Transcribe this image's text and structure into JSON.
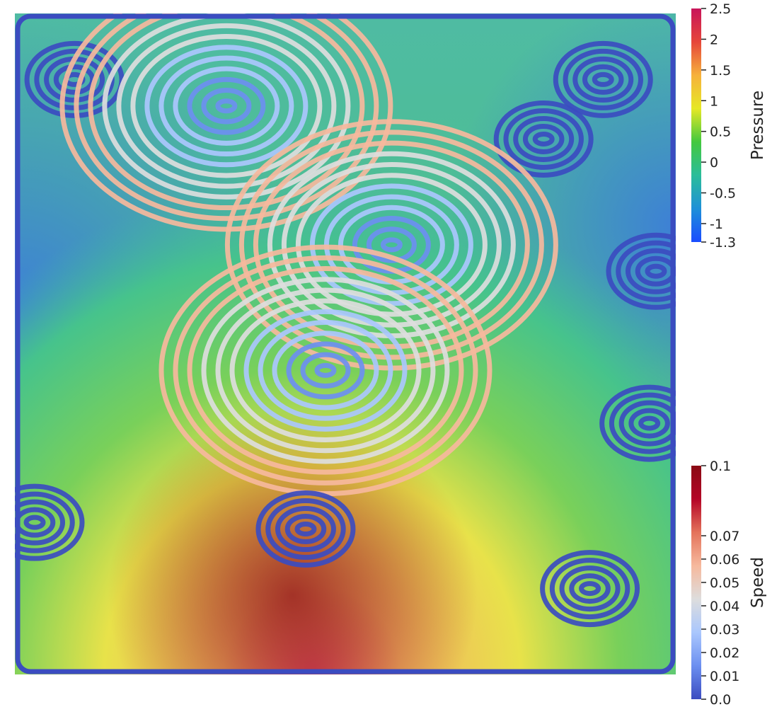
{
  "chart_data": [
    {
      "type": "heatmap",
      "description_free": true,
      "field": "Pressure",
      "colorbar": {
        "title": "Pressure",
        "range": [
          -1.3,
          2.5
        ],
        "ticks": [
          {
            "value": 2.5,
            "label": "2.5"
          },
          {
            "value": 2,
            "label": "2"
          },
          {
            "value": 1.5,
            "label": "1.5"
          },
          {
            "value": 1,
            "label": "1"
          },
          {
            "value": 0.5,
            "label": "0.5"
          },
          {
            "value": 0,
            "label": "0"
          },
          {
            "value": -0.5,
            "label": "-0.5"
          },
          {
            "value": -1,
            "label": "-1"
          },
          {
            "value": -1.3,
            "label": "-1.3"
          }
        ],
        "colors": [
          "#1a4cff",
          "#1e90d8",
          "#2bbd9a",
          "#43c83e",
          "#e6e826",
          "#f6b13c",
          "#e6463a",
          "#c8145a"
        ],
        "placement": "top-right"
      }
    },
    {
      "type": "streamlines",
      "field": "Speed",
      "colorbar": {
        "title": "Speed",
        "range": [
          0.0,
          0.1
        ],
        "ticks": [
          {
            "value": 0.1,
            "label": "0.1"
          },
          {
            "value": 0.07,
            "label": "0.07"
          },
          {
            "value": 0.06,
            "label": "0.06"
          },
          {
            "value": 0.05,
            "label": "0.05"
          },
          {
            "value": 0.04,
            "label": "0.04"
          },
          {
            "value": 0.03,
            "label": "0.03"
          },
          {
            "value": 0.02,
            "label": "0.02"
          },
          {
            "value": 0.01,
            "label": "0.01"
          },
          {
            "value": 0.0,
            "label": "0.0"
          }
        ],
        "colors": [
          "#3b4cc0",
          "#6c8ff0",
          "#aac7fd",
          "#dddddd",
          "#f6b99d",
          "#e4735b",
          "#b40426",
          "#8a0a14"
        ],
        "placement": "bottom-right"
      },
      "vortices": [
        {
          "x": 0.09,
          "y": 0.9
        },
        {
          "x": 0.32,
          "y": 0.86
        },
        {
          "x": 0.89,
          "y": 0.9
        },
        {
          "x": 0.8,
          "y": 0.81
        },
        {
          "x": 0.57,
          "y": 0.65
        },
        {
          "x": 0.47,
          "y": 0.46
        },
        {
          "x": 0.44,
          "y": 0.22
        },
        {
          "x": 0.87,
          "y": 0.13
        },
        {
          "x": 0.03,
          "y": 0.23
        },
        {
          "x": 0.97,
          "y": 0.61
        },
        {
          "x": 0.96,
          "y": 0.38
        }
      ]
    }
  ]
}
